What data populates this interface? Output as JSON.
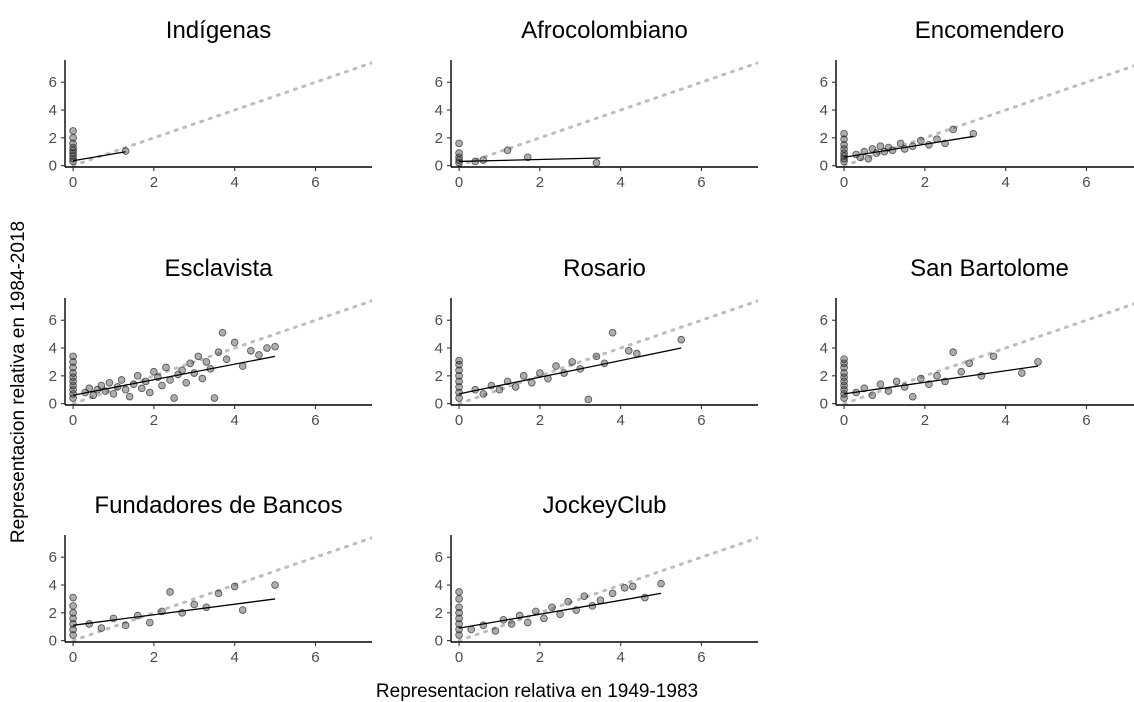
{
  "figure": {
    "xlabel": "Representacion relativa en 1949-1983",
    "ylabel": "Representacion relativa en 1984-2018"
  },
  "chart_data": [
    {
      "type": "scatter",
      "title": "Indígenas",
      "xlim": [
        -0.2,
        7.4
      ],
      "ylim": [
        -0.1,
        7.6
      ],
      "xticks": [
        0,
        2,
        4,
        6
      ],
      "yticks": [
        0,
        2,
        4,
        6
      ],
      "reference_line": {
        "style": "dotted",
        "color": "#bdbdbd",
        "from": [
          0,
          0
        ],
        "to": [
          7.4,
          7.4
        ]
      },
      "fit_line": {
        "x": [
          0,
          1.3
        ],
        "y": [
          0.35,
          1.0
        ]
      },
      "points": [
        {
          "x": 0,
          "y": 0.3
        },
        {
          "x": 0,
          "y": 0.5
        },
        {
          "x": 0,
          "y": 0.7
        },
        {
          "x": 0,
          "y": 0.9
        },
        {
          "x": 0,
          "y": 1.1
        },
        {
          "x": 0,
          "y": 1.3
        },
        {
          "x": 0,
          "y": 1.6
        },
        {
          "x": 0,
          "y": 2.0
        },
        {
          "x": 0,
          "y": 2.5
        },
        {
          "x": 1.3,
          "y": 1.05
        }
      ]
    },
    {
      "type": "scatter",
      "title": "Afrocolombiano",
      "xlim": [
        -0.2,
        7.4
      ],
      "ylim": [
        -0.1,
        7.6
      ],
      "xticks": [
        0,
        2,
        4,
        6
      ],
      "yticks": [
        0,
        2,
        4,
        6
      ],
      "reference_line": {
        "style": "dotted",
        "color": "#bdbdbd",
        "from": [
          0,
          0
        ],
        "to": [
          7.4,
          7.4
        ]
      },
      "fit_line": {
        "x": [
          0,
          3.5
        ],
        "y": [
          0.3,
          0.55
        ]
      },
      "points": [
        {
          "x": 0,
          "y": 0.2
        },
        {
          "x": 0,
          "y": 0.4
        },
        {
          "x": 0,
          "y": 0.6
        },
        {
          "x": 0,
          "y": 0.9
        },
        {
          "x": 0,
          "y": 1.6
        },
        {
          "x": 0.4,
          "y": 0.3
        },
        {
          "x": 0.6,
          "y": 0.4
        },
        {
          "x": 1.2,
          "y": 1.1
        },
        {
          "x": 1.7,
          "y": 0.6
        },
        {
          "x": 3.4,
          "y": 0.2
        }
      ]
    },
    {
      "type": "scatter",
      "title": "Encomendero",
      "xlim": [
        -0.2,
        7.4
      ],
      "ylim": [
        -0.1,
        7.6
      ],
      "xticks": [
        0,
        2,
        4,
        6
      ],
      "yticks": [
        0,
        2,
        4,
        6
      ],
      "reference_line": {
        "style": "dotted",
        "color": "#bdbdbd",
        "from": [
          0,
          0
        ],
        "to": [
          7.4,
          7.4
        ]
      },
      "fit_line": {
        "x": [
          0,
          3.2
        ],
        "y": [
          0.6,
          2.1
        ]
      },
      "points": [
        {
          "x": 0,
          "y": 0.3
        },
        {
          "x": 0,
          "y": 0.5
        },
        {
          "x": 0,
          "y": 0.7
        },
        {
          "x": 0,
          "y": 0.9
        },
        {
          "x": 0,
          "y": 1.2
        },
        {
          "x": 0,
          "y": 1.5
        },
        {
          "x": 0,
          "y": 1.9
        },
        {
          "x": 0,
          "y": 2.3
        },
        {
          "x": 0.3,
          "y": 0.8
        },
        {
          "x": 0.4,
          "y": 0.6
        },
        {
          "x": 0.5,
          "y": 1.0
        },
        {
          "x": 0.6,
          "y": 0.5
        },
        {
          "x": 0.7,
          "y": 1.2
        },
        {
          "x": 0.8,
          "y": 0.9
        },
        {
          "x": 0.9,
          "y": 1.4
        },
        {
          "x": 1.0,
          "y": 1.0
        },
        {
          "x": 1.1,
          "y": 1.3
        },
        {
          "x": 1.2,
          "y": 1.1
        },
        {
          "x": 1.4,
          "y": 1.6
        },
        {
          "x": 1.5,
          "y": 1.2
        },
        {
          "x": 1.7,
          "y": 1.4
        },
        {
          "x": 1.9,
          "y": 1.8
        },
        {
          "x": 2.1,
          "y": 1.5
        },
        {
          "x": 2.3,
          "y": 1.9
        },
        {
          "x": 2.5,
          "y": 1.6
        },
        {
          "x": 2.7,
          "y": 2.6
        },
        {
          "x": 3.2,
          "y": 2.3
        }
      ]
    },
    {
      "type": "scatter",
      "title": "Esclavista",
      "xlim": [
        -0.2,
        7.4
      ],
      "ylim": [
        -0.1,
        7.6
      ],
      "xticks": [
        0,
        2,
        4,
        6
      ],
      "yticks": [
        0,
        2,
        4,
        6
      ],
      "reference_line": {
        "style": "dotted",
        "color": "#bdbdbd",
        "from": [
          0,
          0
        ],
        "to": [
          7.4,
          7.4
        ]
      },
      "fit_line": {
        "x": [
          0,
          5.0
        ],
        "y": [
          0.6,
          3.4
        ]
      },
      "points": [
        {
          "x": 0,
          "y": 0.4
        },
        {
          "x": 0,
          "y": 0.7
        },
        {
          "x": 0,
          "y": 1.0
        },
        {
          "x": 0,
          "y": 1.3
        },
        {
          "x": 0,
          "y": 1.6
        },
        {
          "x": 0,
          "y": 1.9
        },
        {
          "x": 0,
          "y": 2.2
        },
        {
          "x": 0,
          "y": 2.6
        },
        {
          "x": 0,
          "y": 3.0
        },
        {
          "x": 0,
          "y": 3.4
        },
        {
          "x": 0.3,
          "y": 0.8
        },
        {
          "x": 0.4,
          "y": 1.1
        },
        {
          "x": 0.5,
          "y": 0.6
        },
        {
          "x": 0.6,
          "y": 1.0
        },
        {
          "x": 0.7,
          "y": 1.3
        },
        {
          "x": 0.8,
          "y": 0.9
        },
        {
          "x": 0.9,
          "y": 1.5
        },
        {
          "x": 1.0,
          "y": 0.7
        },
        {
          "x": 1.1,
          "y": 1.2
        },
        {
          "x": 1.2,
          "y": 1.7
        },
        {
          "x": 1.3,
          "y": 1.0
        },
        {
          "x": 1.4,
          "y": 0.5
        },
        {
          "x": 1.5,
          "y": 1.4
        },
        {
          "x": 1.6,
          "y": 2.0
        },
        {
          "x": 1.7,
          "y": 1.1
        },
        {
          "x": 1.8,
          "y": 1.6
        },
        {
          "x": 1.9,
          "y": 0.8
        },
        {
          "x": 2.0,
          "y": 2.3
        },
        {
          "x": 2.1,
          "y": 1.9
        },
        {
          "x": 2.2,
          "y": 1.3
        },
        {
          "x": 2.3,
          "y": 2.6
        },
        {
          "x": 2.4,
          "y": 1.7
        },
        {
          "x": 2.5,
          "y": 0.4
        },
        {
          "x": 2.6,
          "y": 2.1
        },
        {
          "x": 2.7,
          "y": 2.4
        },
        {
          "x": 2.8,
          "y": 1.5
        },
        {
          "x": 2.9,
          "y": 2.9
        },
        {
          "x": 3.0,
          "y": 2.2
        },
        {
          "x": 3.1,
          "y": 3.4
        },
        {
          "x": 3.2,
          "y": 1.8
        },
        {
          "x": 3.3,
          "y": 3.0
        },
        {
          "x": 3.4,
          "y": 2.5
        },
        {
          "x": 3.5,
          "y": 0.4
        },
        {
          "x": 3.6,
          "y": 3.7
        },
        {
          "x": 3.7,
          "y": 5.1
        },
        {
          "x": 3.8,
          "y": 3.2
        },
        {
          "x": 4.0,
          "y": 4.4
        },
        {
          "x": 4.2,
          "y": 2.7
        },
        {
          "x": 4.4,
          "y": 3.8
        },
        {
          "x": 4.6,
          "y": 3.5
        },
        {
          "x": 4.8,
          "y": 4.0
        },
        {
          "x": 5.0,
          "y": 4.1
        }
      ]
    },
    {
      "type": "scatter",
      "title": "Rosario",
      "xlim": [
        -0.2,
        7.4
      ],
      "ylim": [
        -0.1,
        7.6
      ],
      "xticks": [
        0,
        2,
        4,
        6
      ],
      "yticks": [
        0,
        2,
        4,
        6
      ],
      "reference_line": {
        "style": "dotted",
        "color": "#bdbdbd",
        "from": [
          0,
          0
        ],
        "to": [
          7.4,
          7.4
        ]
      },
      "fit_line": {
        "x": [
          0,
          5.5
        ],
        "y": [
          0.7,
          4.0
        ]
      },
      "points": [
        {
          "x": 0,
          "y": 0.4
        },
        {
          "x": 0,
          "y": 0.8
        },
        {
          "x": 0,
          "y": 1.2
        },
        {
          "x": 0,
          "y": 1.6
        },
        {
          "x": 0,
          "y": 2.0
        },
        {
          "x": 0,
          "y": 2.4
        },
        {
          "x": 0,
          "y": 2.8
        },
        {
          "x": 0,
          "y": 3.1
        },
        {
          "x": 0.4,
          "y": 1.0
        },
        {
          "x": 0.6,
          "y": 0.7
        },
        {
          "x": 0.8,
          "y": 1.3
        },
        {
          "x": 1.0,
          "y": 1.0
        },
        {
          "x": 1.2,
          "y": 1.6
        },
        {
          "x": 1.4,
          "y": 1.2
        },
        {
          "x": 1.6,
          "y": 2.0
        },
        {
          "x": 1.8,
          "y": 1.5
        },
        {
          "x": 2.0,
          "y": 2.2
        },
        {
          "x": 2.2,
          "y": 1.8
        },
        {
          "x": 2.4,
          "y": 2.7
        },
        {
          "x": 2.6,
          "y": 2.2
        },
        {
          "x": 2.8,
          "y": 3.0
        },
        {
          "x": 3.0,
          "y": 2.5
        },
        {
          "x": 3.2,
          "y": 0.3
        },
        {
          "x": 3.4,
          "y": 3.4
        },
        {
          "x": 3.6,
          "y": 2.9
        },
        {
          "x": 3.8,
          "y": 5.1
        },
        {
          "x": 4.2,
          "y": 3.8
        },
        {
          "x": 4.4,
          "y": 3.6
        },
        {
          "x": 5.5,
          "y": 4.6
        }
      ]
    },
    {
      "type": "scatter",
      "title": "San Bartolome",
      "xlim": [
        -0.2,
        7.4
      ],
      "ylim": [
        -0.1,
        7.6
      ],
      "xticks": [
        0,
        2,
        4,
        6
      ],
      "yticks": [
        0,
        2,
        4,
        6
      ],
      "reference_line": {
        "style": "dotted",
        "color": "#bdbdbd",
        "from": [
          0,
          0
        ],
        "to": [
          7.4,
          7.4
        ]
      },
      "fit_line": {
        "x": [
          0,
          4.8
        ],
        "y": [
          0.7,
          2.7
        ]
      },
      "points": [
        {
          "x": 0,
          "y": 0.4
        },
        {
          "x": 0,
          "y": 0.7
        },
        {
          "x": 0,
          "y": 1.0
        },
        {
          "x": 0,
          "y": 1.3
        },
        {
          "x": 0,
          "y": 1.6
        },
        {
          "x": 0,
          "y": 1.9
        },
        {
          "x": 0,
          "y": 2.2
        },
        {
          "x": 0,
          "y": 2.6
        },
        {
          "x": 0,
          "y": 2.9
        },
        {
          "x": 0,
          "y": 3.2
        },
        {
          "x": 0.3,
          "y": 0.8
        },
        {
          "x": 0.5,
          "y": 1.1
        },
        {
          "x": 0.7,
          "y": 0.6
        },
        {
          "x": 0.9,
          "y": 1.4
        },
        {
          "x": 1.1,
          "y": 0.9
        },
        {
          "x": 1.3,
          "y": 1.6
        },
        {
          "x": 1.5,
          "y": 1.2
        },
        {
          "x": 1.7,
          "y": 0.5
        },
        {
          "x": 1.9,
          "y": 1.8
        },
        {
          "x": 2.1,
          "y": 1.4
        },
        {
          "x": 2.3,
          "y": 2.0
        },
        {
          "x": 2.5,
          "y": 1.6
        },
        {
          "x": 2.7,
          "y": 3.7
        },
        {
          "x": 2.9,
          "y": 2.3
        },
        {
          "x": 3.1,
          "y": 2.9
        },
        {
          "x": 3.4,
          "y": 2.0
        },
        {
          "x": 3.7,
          "y": 3.4
        },
        {
          "x": 4.4,
          "y": 2.2
        },
        {
          "x": 4.8,
          "y": 3.0
        }
      ]
    },
    {
      "type": "scatter",
      "title": "Fundadores de Bancos",
      "xlim": [
        -0.2,
        7.4
      ],
      "ylim": [
        -0.1,
        7.6
      ],
      "xticks": [
        0,
        2,
        4,
        6
      ],
      "yticks": [
        0,
        2,
        4,
        6
      ],
      "reference_line": {
        "style": "dotted",
        "color": "#bdbdbd",
        "from": [
          0,
          0
        ],
        "to": [
          7.4,
          7.4
        ]
      },
      "fit_line": {
        "x": [
          0,
          5.0
        ],
        "y": [
          1.1,
          3.0
        ]
      },
      "points": [
        {
          "x": 0,
          "y": 0.4
        },
        {
          "x": 0,
          "y": 0.8
        },
        {
          "x": 0,
          "y": 1.2
        },
        {
          "x": 0,
          "y": 1.6
        },
        {
          "x": 0,
          "y": 2.0
        },
        {
          "x": 0,
          "y": 2.5
        },
        {
          "x": 0,
          "y": 3.1
        },
        {
          "x": 0.4,
          "y": 1.2
        },
        {
          "x": 0.7,
          "y": 0.9
        },
        {
          "x": 1.0,
          "y": 1.6
        },
        {
          "x": 1.3,
          "y": 1.1
        },
        {
          "x": 1.6,
          "y": 1.8
        },
        {
          "x": 1.9,
          "y": 1.3
        },
        {
          "x": 2.2,
          "y": 2.1
        },
        {
          "x": 2.4,
          "y": 3.5
        },
        {
          "x": 2.7,
          "y": 2.0
        },
        {
          "x": 3.0,
          "y": 2.6
        },
        {
          "x": 3.3,
          "y": 2.4
        },
        {
          "x": 3.6,
          "y": 3.4
        },
        {
          "x": 4.0,
          "y": 3.9
        },
        {
          "x": 4.2,
          "y": 2.2
        },
        {
          "x": 5.0,
          "y": 4.0
        }
      ]
    },
    {
      "type": "scatter",
      "title": "JockeyClub",
      "xlim": [
        -0.2,
        7.4
      ],
      "ylim": [
        -0.1,
        7.6
      ],
      "xticks": [
        0,
        2,
        4,
        6
      ],
      "yticks": [
        0,
        2,
        4,
        6
      ],
      "reference_line": {
        "style": "dotted",
        "color": "#bdbdbd",
        "from": [
          0,
          0
        ],
        "to": [
          7.4,
          7.4
        ]
      },
      "fit_line": {
        "x": [
          0,
          5.0
        ],
        "y": [
          0.9,
          3.4
        ]
      },
      "points": [
        {
          "x": 0,
          "y": 0.4
        },
        {
          "x": 0,
          "y": 0.8
        },
        {
          "x": 0,
          "y": 1.2
        },
        {
          "x": 0,
          "y": 1.6
        },
        {
          "x": 0,
          "y": 2.0
        },
        {
          "x": 0,
          "y": 2.4
        },
        {
          "x": 0,
          "y": 3.0
        },
        {
          "x": 0,
          "y": 3.5
        },
        {
          "x": 0.3,
          "y": 0.8
        },
        {
          "x": 0.6,
          "y": 1.1
        },
        {
          "x": 0.9,
          "y": 0.7
        },
        {
          "x": 1.1,
          "y": 1.5
        },
        {
          "x": 1.3,
          "y": 1.2
        },
        {
          "x": 1.5,
          "y": 1.8
        },
        {
          "x": 1.7,
          "y": 1.3
        },
        {
          "x": 1.9,
          "y": 2.1
        },
        {
          "x": 2.1,
          "y": 1.6
        },
        {
          "x": 2.3,
          "y": 2.4
        },
        {
          "x": 2.5,
          "y": 1.9
        },
        {
          "x": 2.7,
          "y": 2.8
        },
        {
          "x": 2.9,
          "y": 2.2
        },
        {
          "x": 3.1,
          "y": 3.2
        },
        {
          "x": 3.3,
          "y": 2.5
        },
        {
          "x": 3.5,
          "y": 2.9
        },
        {
          "x": 3.8,
          "y": 3.4
        },
        {
          "x": 4.1,
          "y": 3.8
        },
        {
          "x": 4.3,
          "y": 3.9
        },
        {
          "x": 4.6,
          "y": 3.1
        },
        {
          "x": 5.0,
          "y": 4.1
        }
      ]
    }
  ]
}
